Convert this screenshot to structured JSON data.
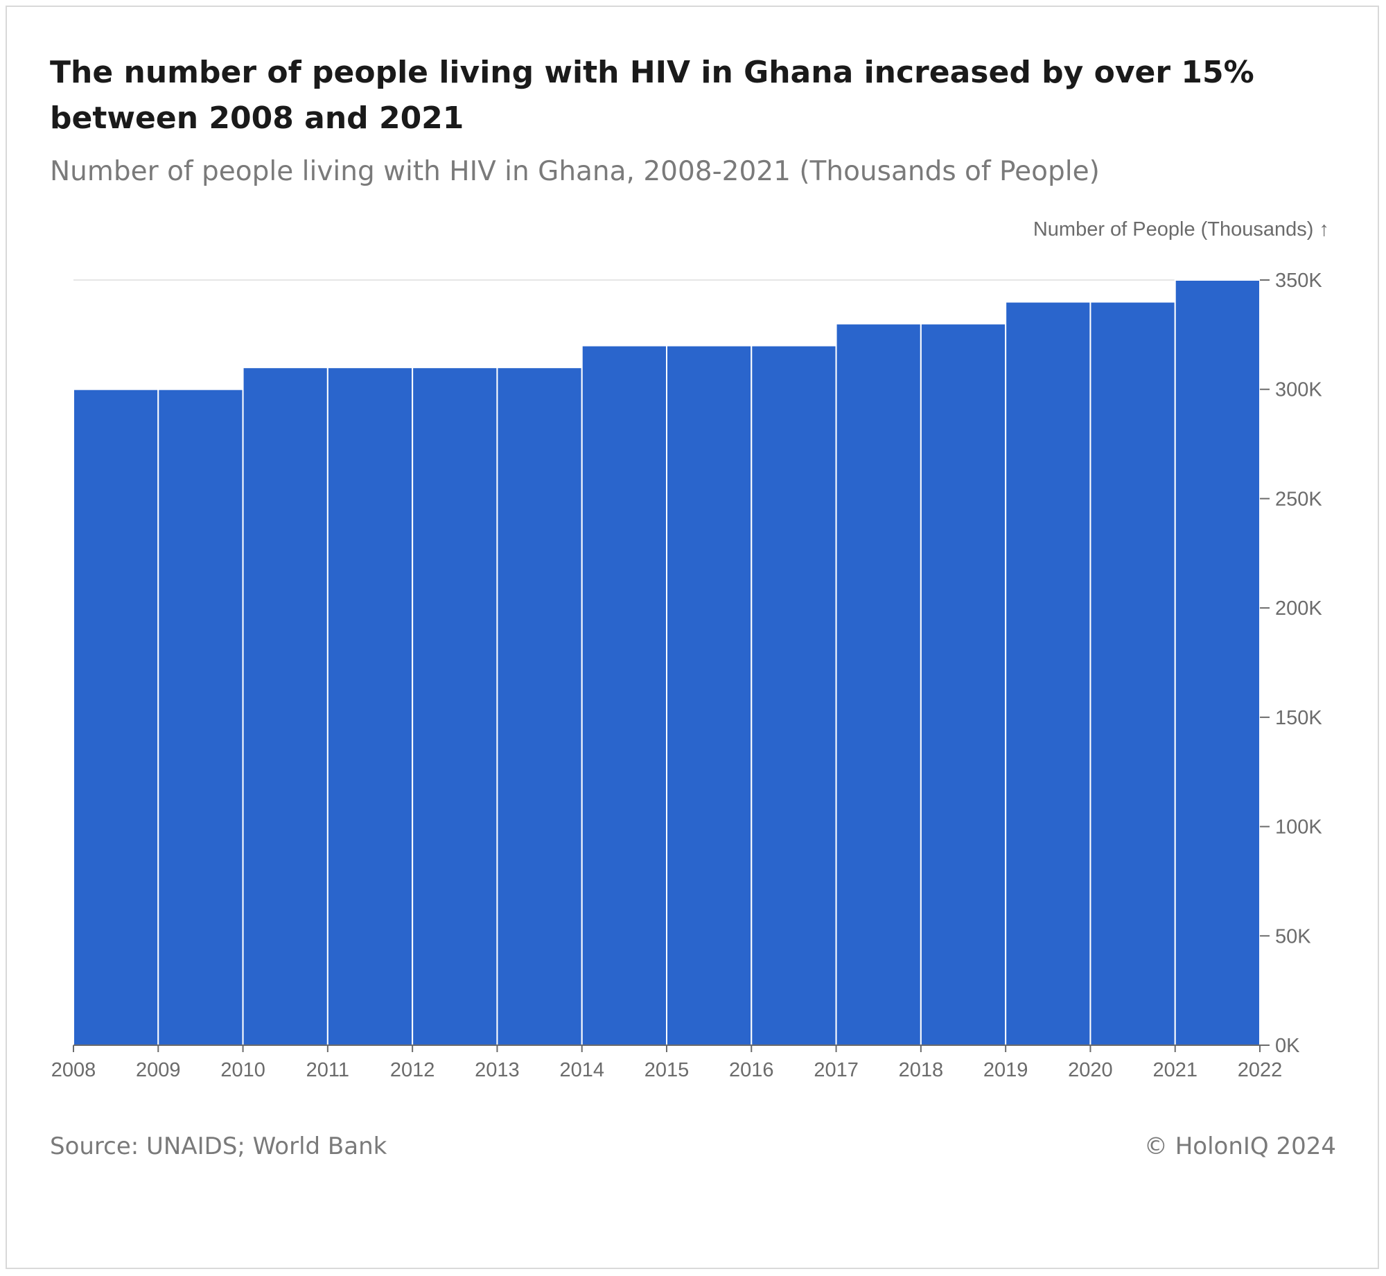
{
  "title": "The number of people living with HIV in Ghana increased by over 15% between 2008 and 2021",
  "subtitle": "Number of people living with HIV in Ghana, 2008-2021 (Thousands of People)",
  "source": "Source: UNAIDS; World Bank",
  "copyright": "© HolonIQ 2024",
  "colors": {
    "bar": "#2a65cc",
    "grid": "#e6e6e6",
    "axis": "#6b6b6b",
    "text": "#6b6b6b"
  },
  "chart_data": {
    "type": "bar",
    "ylabel": "Number of People (Thousands) ↑",
    "categories": [
      "2008",
      "2009",
      "2010",
      "2011",
      "2012",
      "2013",
      "2014",
      "2015",
      "2016",
      "2017",
      "2018",
      "2019",
      "2020",
      "2021"
    ],
    "values": [
      300,
      300,
      310,
      310,
      310,
      310,
      320,
      320,
      320,
      330,
      330,
      340,
      340,
      350
    ],
    "x_ticks": [
      "2008",
      "2009",
      "2010",
      "2011",
      "2012",
      "2013",
      "2014",
      "2015",
      "2016",
      "2017",
      "2018",
      "2019",
      "2020",
      "2021",
      "2022"
    ],
    "y_ticks": [
      {
        "value": 0,
        "label": "0K"
      },
      {
        "value": 50,
        "label": "50K"
      },
      {
        "value": 100,
        "label": "100K"
      },
      {
        "value": 150,
        "label": "150K"
      },
      {
        "value": 200,
        "label": "200K"
      },
      {
        "value": 250,
        "label": "250K"
      },
      {
        "value": 300,
        "label": "300K"
      },
      {
        "value": 350,
        "label": "350K"
      }
    ],
    "ylim": [
      0,
      350
    ],
    "y_axis_position": "right",
    "grid": true
  }
}
